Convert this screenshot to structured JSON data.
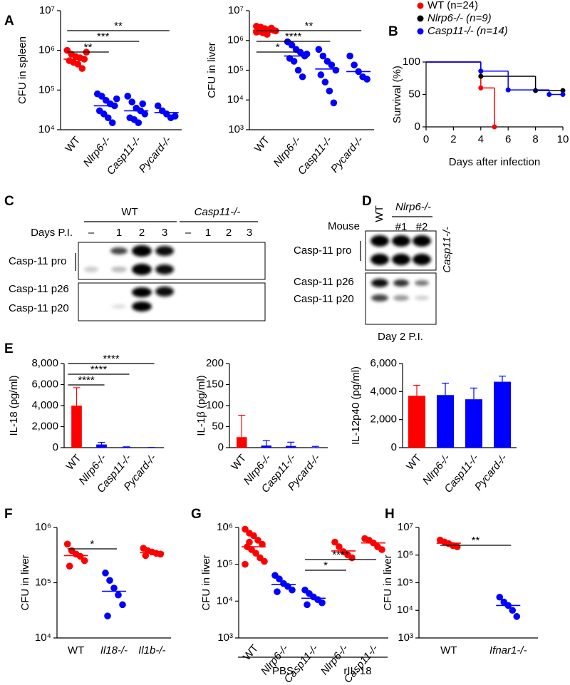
{
  "panel_labels": [
    "A",
    "B",
    "C",
    "D",
    "E",
    "F",
    "G",
    "H"
  ],
  "chart_data": [
    {
      "type": "dot",
      "ylabel": "CFU in spleen",
      "log_y": true,
      "ylim": [
        10000,
        10000000
      ],
      "yticks": [
        {
          "value": 10000,
          "label": "10⁴"
        },
        {
          "value": 100000,
          "label": "10⁵"
        },
        {
          "value": 1000000,
          "label": "10⁶"
        },
        {
          "value": 10000000,
          "label": "10⁷"
        }
      ],
      "categories": [
        "WT",
        "Nlrp6-/-",
        "Casp11-/-",
        "Pycard-/-"
      ],
      "colors": [
        "#ff0000",
        "#0000ff",
        "#0000ff",
        "#0000ff"
      ],
      "points": [
        [
          1000000,
          800000,
          700000,
          650000,
          600000,
          550000,
          500000,
          450000,
          350000,
          900000
        ],
        [
          80000,
          70000,
          55000,
          45000,
          40000,
          30000,
          25000,
          20000,
          15000,
          60000
        ],
        [
          70000,
          50000,
          35000,
          30000,
          25000,
          20000,
          18000,
          15000,
          45000
        ],
        [
          40000,
          30000,
          25000,
          20000,
          22000
        ]
      ],
      "means": [
        600000,
        40000,
        30000,
        27000
      ],
      "significance": [
        {
          "between": [
            0,
            1
          ],
          "label": "**"
        },
        {
          "between": [
            0,
            2
          ],
          "label": "***"
        },
        {
          "between": [
            0,
            3
          ],
          "label": "**"
        }
      ]
    },
    {
      "type": "dot",
      "ylabel": "CFU in liver",
      "log_y": true,
      "ylim": [
        1000,
        10000000
      ],
      "yticks": [
        {
          "value": 1000,
          "label": "10³"
        },
        {
          "value": 10000,
          "label": "10⁴"
        },
        {
          "value": 100000,
          "label": "10⁵"
        },
        {
          "value": 1000000,
          "label": "10⁶"
        },
        {
          "value": 10000000,
          "label": "10⁷"
        }
      ],
      "categories": [
        "WT",
        "Nlrp6-/-",
        "Casp11-/-",
        "Pycard-/-"
      ],
      "colors": [
        "#ff0000",
        "#0000ff",
        "#0000ff",
        "#0000ff"
      ],
      "points": [
        [
          3000000,
          2800000,
          2500000,
          2300000,
          2200000,
          2000000,
          1800000,
          1600000,
          2600000,
          2100000,
          1900000
        ],
        [
          900000,
          700000,
          500000,
          400000,
          300000,
          250000,
          200000,
          100000,
          60000,
          350000
        ],
        [
          500000,
          300000,
          200000,
          150000,
          100000,
          70000,
          40000,
          20000,
          8000
        ],
        [
          300000,
          150000,
          90000,
          60000,
          50000
        ]
      ],
      "means": [
        2200000,
        300000,
        110000,
        90000
      ],
      "significance": [
        {
          "between": [
            0,
            1
          ],
          "label": "*"
        },
        {
          "between": [
            0,
            2
          ],
          "label": "****"
        },
        {
          "between": [
            0,
            3
          ],
          "label": "**"
        }
      ]
    },
    {
      "type": "survival",
      "xlabel": "Days after infection",
      "ylabel": "Survival (%)",
      "xlim": [
        0,
        10
      ],
      "xticks": [
        0,
        2,
        4,
        6,
        8,
        10
      ],
      "ylim": [
        0,
        100
      ],
      "yticks": [
        0,
        50,
        100
      ],
      "legend": "top",
      "series": [
        {
          "name": "WT (n=24)",
          "color": "#ff0000",
          "x": [
            0,
            4,
            5
          ],
          "values": [
            100,
            60,
            0
          ]
        },
        {
          "name": "Nlrp6-/- (n=9)",
          "color": "#000000",
          "x": [
            0,
            4,
            8,
            10
          ],
          "values": [
            100,
            78,
            56,
            56
          ]
        },
        {
          "name": "Casp11-/- (n=14)",
          "color": "#0000ff",
          "x": [
            0,
            4,
            6,
            9,
            10
          ],
          "values": [
            100,
            86,
            57,
            50,
            50
          ]
        }
      ]
    },
    {
      "type": "bar",
      "ylabel": "IL-18 (pg/ml)",
      "ylim": [
        0,
        8000
      ],
      "yticks": [
        0,
        {
          "value": 2000,
          "label": "2,000"
        },
        {
          "value": 4000,
          "label": "4,000"
        },
        {
          "value": 6000,
          "label": "6,000"
        },
        {
          "value": 8000,
          "label": "8,000"
        }
      ],
      "categories": [
        "WT",
        "Nlrp6-/-",
        "Casp11-/-",
        "Pycard-/-"
      ],
      "colors": [
        "#ff0000",
        "#0000ff",
        "#0000ff",
        "#0000ff"
      ],
      "values": [
        4000,
        300,
        50,
        10
      ],
      "errors": [
        1700,
        200,
        30,
        10
      ],
      "significance": [
        {
          "between": [
            0,
            1
          ],
          "label": "****"
        },
        {
          "between": [
            0,
            2
          ],
          "label": "****"
        },
        {
          "between": [
            0,
            3
          ],
          "label": "****"
        }
      ]
    },
    {
      "type": "bar",
      "ylabel": "IL-1β (pg/ml)",
      "ylim": [
        0,
        200
      ],
      "yticks": [
        0,
        50,
        100,
        150,
        200
      ],
      "categories": [
        "WT",
        "Nlrp6-/-",
        "Casp11-/-",
        "Pycard-/-"
      ],
      "colors": [
        "#ff0000",
        "#0000ff",
        "#0000ff",
        "#0000ff"
      ],
      "values": [
        25,
        5,
        4,
        1
      ],
      "errors": [
        52,
        12,
        9,
        2
      ]
    },
    {
      "type": "bar",
      "ylabel": "IL-12p40 (pg/ml)",
      "ylim": [
        0,
        6000
      ],
      "yticks": [
        0,
        {
          "value": 2000,
          "label": "2,000"
        },
        {
          "value": 4000,
          "label": "4,000"
        },
        {
          "value": 6000,
          "label": "6,000"
        }
      ],
      "categories": [
        "WT",
        "Nlrp6-/-",
        "Casp11-/-",
        "Pycard-/-"
      ],
      "colors": [
        "#ff0000",
        "#0000ff",
        "#0000ff",
        "#0000ff"
      ],
      "values": [
        3700,
        3750,
        3450,
        4700
      ],
      "errors": [
        750,
        850,
        800,
        400
      ]
    },
    {
      "type": "dot",
      "ylabel": "CFU in liver",
      "log_y": true,
      "ylim": [
        10000,
        1000000
      ],
      "yticks": [
        {
          "value": 10000,
          "label": "10⁴"
        },
        {
          "value": 100000,
          "label": "10⁵"
        },
        {
          "value": 1000000,
          "label": "10⁶"
        }
      ],
      "categories": [
        "WT",
        "Il18-/-",
        "Il1b-/-"
      ],
      "colors": [
        "#ff0000",
        "#0000ff",
        "#ff0000"
      ],
      "points": [
        [
          500000,
          380000,
          330000,
          300000,
          250000,
          200000
        ],
        [
          150000,
          110000,
          80000,
          60000,
          40000,
          25000
        ],
        [
          420000,
          380000,
          360000,
          340000,
          330000,
          310000
        ]
      ],
      "means": [
        310000,
        70000,
        350000
      ],
      "significance": [
        {
          "between": [
            0,
            1
          ],
          "label": "*"
        }
      ]
    },
    {
      "type": "dot",
      "ylabel": "CFU in liver",
      "log_y": true,
      "ylim": [
        1000,
        1000000
      ],
      "yticks": [
        {
          "value": 1000,
          "label": "10³"
        },
        {
          "value": 10000,
          "label": "10⁴"
        },
        {
          "value": 100000,
          "label": "10⁵"
        },
        {
          "value": 1000000,
          "label": "10⁶"
        }
      ],
      "categories": [
        "WT",
        "Nlrp6-/-",
        "Casp11-/-",
        "Nlrp6-/-",
        "Casp11-/-"
      ],
      "colors": [
        "#ff0000",
        "#0000ff",
        "#0000ff",
        "#ff0000",
        "#ff0000"
      ],
      "points": [
        [
          900000,
          700000,
          600000,
          450000,
          350000,
          300000,
          250000,
          200000,
          150000,
          120000,
          100000,
          400000
        ],
        [
          50000,
          40000,
          30000,
          25000,
          20000,
          18000
        ],
        [
          20000,
          16000,
          13000,
          11000,
          9000,
          8000
        ],
        [
          400000,
          300000,
          220000,
          180000,
          150000
        ],
        [
          500000,
          450000,
          380000,
          300000,
          250000
        ]
      ],
      "means": [
        300000,
        28000,
        12000,
        230000,
        380000
      ],
      "significance": [
        {
          "between": [
            2,
            3
          ],
          "label": "*"
        },
        {
          "between": [
            2,
            4
          ],
          "label": "****"
        }
      ],
      "groups": [
        {
          "label": "PBS",
          "span": [
            0,
            2
          ]
        },
        {
          "label": "rIL-18",
          "span": [
            3,
            4
          ]
        }
      ]
    },
    {
      "type": "dot",
      "ylabel": "CFU in liver",
      "log_y": true,
      "ylim": [
        1000,
        10000000
      ],
      "yticks": [
        {
          "value": 1000,
          "label": "10³"
        },
        {
          "value": 10000,
          "label": "10⁴"
        },
        {
          "value": 100000,
          "label": "10⁵"
        },
        {
          "value": 1000000,
          "label": "10⁶"
        },
        {
          "value": 10000000,
          "label": "10⁷"
        }
      ],
      "categories": [
        "WT",
        "Ifnar1-/-"
      ],
      "colors": [
        "#ff0000",
        "#0000ff"
      ],
      "points": [
        [
          3500000,
          3000000,
          2600000,
          2200000,
          2000000
        ],
        [
          30000,
          20000,
          15000,
          10000,
          6000
        ]
      ],
      "means": [
        2700000,
        15000
      ],
      "significance": [
        {
          "between": [
            0,
            1
          ],
          "label": "**"
        }
      ]
    }
  ],
  "blots": {
    "C": {
      "groups": [
        "WT",
        "Casp11-/-"
      ],
      "row_title": "Days P.I.",
      "lanes": [
        "–",
        "1",
        "2",
        "3",
        "–",
        "1",
        "2",
        "3"
      ],
      "bands": [
        "Casp-11 pro",
        "Casp-11 p26",
        "Casp-11 p20"
      ]
    },
    "D": {
      "row_title": "Mouse",
      "group": "Nlrp6-/-",
      "lanes": [
        "WT",
        "#1",
        "#2",
        "Casp11-/-"
      ],
      "bands": [
        "Casp-11 pro",
        "Casp-11 p26",
        "Casp-11 p20"
      ],
      "footer": "Day 2 P.I."
    }
  }
}
